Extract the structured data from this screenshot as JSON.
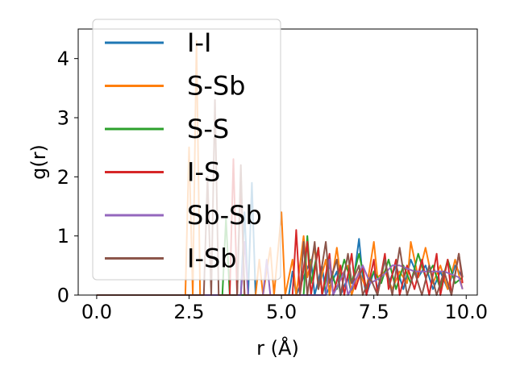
{
  "chart_data": {
    "type": "line",
    "title": "",
    "xlabel": "r (Å)",
    "ylabel": "g(r)",
    "xlim": [
      -0.5,
      10.3
    ],
    "ylim": [
      0,
      4.5
    ],
    "xticks": [
      0.0,
      2.5,
      5.0,
      7.5,
      10.0
    ],
    "xtick_labels": [
      "0.0",
      "2.5",
      "5.0",
      "7.5",
      "10.0"
    ],
    "yticks": [
      0,
      1,
      2,
      3,
      4
    ],
    "ytick_labels": [
      "0",
      "1",
      "2",
      "3",
      "4"
    ],
    "grid": false,
    "legend_position": "top-left",
    "series": [
      {
        "name": "I-I",
        "color": "#1f77b4",
        "points": [
          [
            0,
            0
          ],
          [
            3.9,
            0
          ],
          [
            4.0,
            1.4
          ],
          [
            4.1,
            0
          ],
          [
            4.2,
            1.9
          ],
          [
            4.3,
            0
          ],
          [
            5.2,
            0
          ],
          [
            5.3,
            0.4
          ],
          [
            5.4,
            0
          ],
          [
            5.8,
            0.6
          ],
          [
            5.9,
            0
          ],
          [
            6.1,
            0.5
          ],
          [
            6.2,
            0
          ],
          [
            6.5,
            0.4
          ],
          [
            6.6,
            0
          ],
          [
            6.8,
            0.3
          ],
          [
            6.9,
            0
          ],
          [
            7.1,
            0.95
          ],
          [
            7.2,
            0.3
          ],
          [
            7.3,
            0
          ],
          [
            7.5,
            0.4
          ],
          [
            7.6,
            0.1
          ],
          [
            7.8,
            0.6
          ],
          [
            7.9,
            0.2
          ],
          [
            8.1,
            0.5
          ],
          [
            8.3,
            0.1
          ],
          [
            8.5,
            0.6
          ],
          [
            8.7,
            0.3
          ],
          [
            8.9,
            0.5
          ],
          [
            9.1,
            0.1
          ],
          [
            9.3,
            0.4
          ],
          [
            9.5,
            0.1
          ],
          [
            9.7,
            0.5
          ],
          [
            9.9,
            0.3
          ]
        ]
      },
      {
        "name": "S-Sb",
        "color": "#ff7f0e",
        "points": [
          [
            0,
            0
          ],
          [
            2.4,
            0
          ],
          [
            2.5,
            2.5
          ],
          [
            2.6,
            0
          ],
          [
            2.7,
            4.3
          ],
          [
            2.8,
            0
          ],
          [
            4.3,
            0
          ],
          [
            4.4,
            0.6
          ],
          [
            4.5,
            0
          ],
          [
            4.7,
            0.8
          ],
          [
            4.8,
            0
          ],
          [
            5.0,
            1.4
          ],
          [
            5.1,
            0
          ],
          [
            5.3,
            0.6
          ],
          [
            5.4,
            0
          ],
          [
            5.6,
            1.0
          ],
          [
            5.7,
            0.3
          ],
          [
            5.9,
            0.8
          ],
          [
            6.0,
            0.1
          ],
          [
            6.2,
            0.6
          ],
          [
            6.3,
            0
          ],
          [
            6.5,
            0.8
          ],
          [
            6.6,
            0.3
          ],
          [
            6.8,
            0.5
          ],
          [
            6.9,
            0
          ],
          [
            7.1,
            0.4
          ],
          [
            7.3,
            0.1
          ],
          [
            7.5,
            0.9
          ],
          [
            7.6,
            0.3
          ],
          [
            7.8,
            0.4
          ],
          [
            8.0,
            0.1
          ],
          [
            8.2,
            0.4
          ],
          [
            8.4,
            0.2
          ],
          [
            8.5,
            0.9
          ],
          [
            8.7,
            0.3
          ],
          [
            8.9,
            0.8
          ],
          [
            9.1,
            0.2
          ],
          [
            9.3,
            0.5
          ],
          [
            9.5,
            0.1
          ],
          [
            9.7,
            0.6
          ],
          [
            9.9,
            0.1
          ]
        ]
      },
      {
        "name": "S-S",
        "color": "#2ca02c",
        "points": [
          [
            0,
            0
          ],
          [
            3.4,
            0
          ],
          [
            3.5,
            1.3
          ],
          [
            3.6,
            0
          ],
          [
            5.6,
            0
          ],
          [
            5.7,
            1.0
          ],
          [
            5.8,
            0.2
          ],
          [
            6.0,
            0.8
          ],
          [
            6.1,
            0
          ],
          [
            6.3,
            0.5
          ],
          [
            6.5,
            0.1
          ],
          [
            6.7,
            0.6
          ],
          [
            6.9,
            0.2
          ],
          [
            7.1,
            0.7
          ],
          [
            7.3,
            0.1
          ],
          [
            7.5,
            0.4
          ],
          [
            7.7,
            0.2
          ],
          [
            7.9,
            0.6
          ],
          [
            8.1,
            0.1
          ],
          [
            8.3,
            0.5
          ],
          [
            8.5,
            0.2
          ],
          [
            8.7,
            0.7
          ],
          [
            8.9,
            0.3
          ],
          [
            9.1,
            0.5
          ],
          [
            9.3,
            0.1
          ],
          [
            9.5,
            0.6
          ],
          [
            9.7,
            0.2
          ],
          [
            9.9,
            0.3
          ]
        ]
      },
      {
        "name": "I-S",
        "color": "#d62728",
        "points": [
          [
            0,
            0
          ],
          [
            3.6,
            0
          ],
          [
            3.7,
            2.3
          ],
          [
            3.8,
            0
          ],
          [
            3.9,
            2.0
          ],
          [
            4.0,
            0
          ],
          [
            5.3,
            0
          ],
          [
            5.4,
            1.1
          ],
          [
            5.5,
            0
          ],
          [
            5.7,
            0.9
          ],
          [
            5.8,
            0
          ],
          [
            6.0,
            0.8
          ],
          [
            6.1,
            0
          ],
          [
            6.3,
            0.7
          ],
          [
            6.4,
            0
          ],
          [
            6.6,
            0.5
          ],
          [
            6.7,
            0
          ],
          [
            6.9,
            0.7
          ],
          [
            7.0,
            0.1
          ],
          [
            7.2,
            0.5
          ],
          [
            7.3,
            0
          ],
          [
            7.5,
            0.6
          ],
          [
            7.6,
            0
          ],
          [
            7.8,
            0.7
          ],
          [
            7.9,
            0.1
          ],
          [
            8.1,
            0.6
          ],
          [
            8.2,
            0
          ],
          [
            8.4,
            0.5
          ],
          [
            8.6,
            0.1
          ],
          [
            8.8,
            0.6
          ],
          [
            9.0,
            0
          ],
          [
            9.2,
            0.7
          ],
          [
            9.3,
            0
          ],
          [
            9.5,
            0.6
          ],
          [
            9.6,
            0
          ],
          [
            9.8,
            0.7
          ],
          [
            9.9,
            0.2
          ]
        ]
      },
      {
        "name": "Sb-Sb",
        "color": "#9467bd",
        "points": [
          [
            0,
            0
          ],
          [
            3.9,
            0
          ],
          [
            4.0,
            0.9
          ],
          [
            4.1,
            0
          ],
          [
            4.5,
            0
          ],
          [
            4.6,
            0.6
          ],
          [
            4.7,
            0
          ],
          [
            6.2,
            0
          ],
          [
            6.3,
            0.6
          ],
          [
            6.4,
            0
          ],
          [
            6.7,
            0.4
          ],
          [
            6.8,
            0
          ],
          [
            7.2,
            0.5
          ],
          [
            7.4,
            0.2
          ],
          [
            7.7,
            0.3
          ],
          [
            8.0,
            0.5
          ],
          [
            8.2,
            0.5
          ],
          [
            8.6,
            0.4
          ],
          [
            9.0,
            0.4
          ],
          [
            9.4,
            0.4
          ],
          [
            9.8,
            0.3
          ],
          [
            9.9,
            0.1
          ]
        ]
      },
      {
        "name": "I-Sb",
        "color": "#8c564b",
        "points": [
          [
            0,
            0
          ],
          [
            2.9,
            0
          ],
          [
            3.0,
            2.0
          ],
          [
            3.1,
            0
          ],
          [
            3.2,
            3.3
          ],
          [
            3.3,
            0
          ],
          [
            3.8,
            0
          ],
          [
            3.9,
            2.2
          ],
          [
            4.0,
            0
          ],
          [
            5.5,
            0
          ],
          [
            5.6,
            0.9
          ],
          [
            5.7,
            0
          ],
          [
            5.9,
            0.9
          ],
          [
            6.0,
            0.1
          ],
          [
            6.2,
            0.9
          ],
          [
            6.3,
            0.2
          ],
          [
            6.5,
            0.6
          ],
          [
            6.6,
            0
          ],
          [
            6.8,
            0.7
          ],
          [
            6.9,
            0.2
          ],
          [
            7.1,
            0.5
          ],
          [
            7.2,
            0
          ],
          [
            7.4,
            0.3
          ],
          [
            7.6,
            0
          ],
          [
            7.8,
            0.6
          ],
          [
            8.0,
            0
          ],
          [
            8.2,
            0.8
          ],
          [
            8.4,
            0
          ],
          [
            8.6,
            0.4
          ],
          [
            8.8,
            0
          ],
          [
            9.0,
            0.5
          ],
          [
            9.2,
            0
          ],
          [
            9.4,
            0.4
          ],
          [
            9.6,
            0
          ],
          [
            9.8,
            0.7
          ],
          [
            9.9,
            0.3
          ]
        ]
      }
    ]
  }
}
